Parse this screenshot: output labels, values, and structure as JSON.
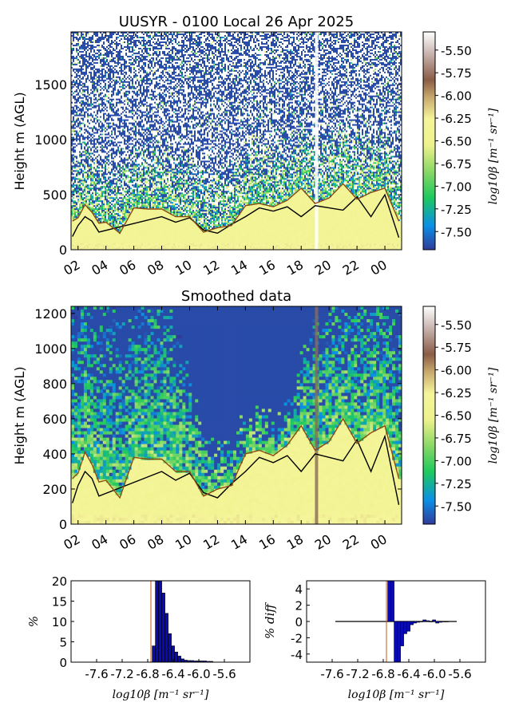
{
  "colors": {
    "colormap": [
      "#303b9a",
      "#0a8fe6",
      "#1ec95d",
      "#8ad866",
      "#eef28c",
      "#f5f59a",
      "#c8a86c",
      "#8a5c46",
      "#c8b4ae",
      "#ffffff"
    ],
    "black_line": "#000000",
    "brown_line": "#8a4a14",
    "hist_bar": "#0a0ab4",
    "marker_line": "#c45a1a"
  },
  "chart_data": [
    {
      "type": "heatmap",
      "title": "UUSYR - 0100 Local 26 Apr 2025",
      "ylabel": "Height m (AGL)",
      "xticks": [
        "02",
        "04",
        "06",
        "08",
        "10",
        "12",
        "14",
        "16",
        "18",
        "20",
        "22",
        "00"
      ],
      "xlim_hours": [
        1.5,
        25.2
      ],
      "yticks": [
        0,
        500,
        1000,
        1500
      ],
      "ylim": [
        0,
        1980
      ],
      "colorbar": {
        "label": "log10β [m⁻¹ sr⁻¹]",
        "ticks": [
          "-5.50",
          "-5.75",
          "-6.00",
          "-6.25",
          "-6.50",
          "-6.75",
          "-7.00",
          "-7.25",
          "-7.50"
        ],
        "range": [
          -7.7,
          -5.3
        ]
      },
      "series": [
        {
          "style": "black",
          "hour": [
            1.6,
            2.0,
            2.5,
            3.0,
            3.5,
            8.0,
            9.0,
            10.0,
            11.0,
            12.0,
            13.0,
            14.0,
            15.0,
            16.0,
            17.0,
            18.0,
            19.0,
            20.0,
            21.0,
            22.0,
            23.0,
            24.0,
            25.0
          ],
          "height": [
            120,
            220,
            300,
            260,
            160,
            300,
            250,
            290,
            180,
            150,
            230,
            300,
            380,
            350,
            390,
            300,
            400,
            380,
            360,
            480,
            300,
            500,
            110
          ]
        },
        {
          "style": "brown",
          "hour": [
            1.6,
            2.0,
            2.5,
            3.0,
            3.5,
            4.0,
            5.0,
            6.0,
            7.0,
            8.0,
            9.0,
            10.0,
            11.0,
            12.0,
            13.0,
            14.0,
            15.0,
            16.0,
            17.0,
            18.0,
            19.0,
            20.0,
            21.0,
            22.0,
            23.0,
            24.0,
            25.0
          ],
          "height": [
            260,
            290,
            410,
            340,
            240,
            250,
            150,
            380,
            370,
            370,
            300,
            300,
            160,
            200,
            220,
            400,
            420,
            390,
            450,
            560,
            420,
            470,
            600,
            460,
            520,
            560,
            260
          ]
        }
      ]
    },
    {
      "type": "heatmap",
      "title": "Smoothed data",
      "ylabel": "Height m (AGL)",
      "xticks": [
        "02",
        "04",
        "06",
        "08",
        "10",
        "12",
        "14",
        "16",
        "18",
        "20",
        "22",
        "00"
      ],
      "xlim_hours": [
        1.5,
        25.2
      ],
      "yticks": [
        0,
        200,
        400,
        600,
        800,
        1000,
        1200
      ],
      "ylim": [
        0,
        1240
      ],
      "colorbar": {
        "label": "log10β [m⁻¹ sr⁻¹]",
        "ticks": [
          "-5.50",
          "-5.75",
          "-6.00",
          "-6.25",
          "-6.50",
          "-6.75",
          "-7.00",
          "-7.25",
          "-7.50"
        ],
        "range": [
          -7.7,
          -5.3
        ]
      },
      "series": [
        {
          "style": "black",
          "hour": [
            1.6,
            2.0,
            2.5,
            3.0,
            3.5,
            8.0,
            9.0,
            10.0,
            11.0,
            12.0,
            13.0,
            14.0,
            15.0,
            16.0,
            17.0,
            18.0,
            19.0,
            20.0,
            21.0,
            22.0,
            23.0,
            24.0,
            25.0
          ],
          "height": [
            120,
            220,
            300,
            260,
            160,
            300,
            250,
            290,
            180,
            150,
            230,
            300,
            380,
            350,
            390,
            300,
            400,
            380,
            360,
            480,
            300,
            500,
            110
          ]
        },
        {
          "style": "brown",
          "hour": [
            1.6,
            2.0,
            2.5,
            3.0,
            3.5,
            4.0,
            5.0,
            6.0,
            7.0,
            8.0,
            9.0,
            10.0,
            11.0,
            12.0,
            13.0,
            14.0,
            15.0,
            16.0,
            17.0,
            18.0,
            19.0,
            20.0,
            21.0,
            22.0,
            23.0,
            24.0,
            25.0
          ],
          "height": [
            260,
            290,
            410,
            340,
            240,
            250,
            150,
            380,
            370,
            370,
            300,
            300,
            160,
            200,
            220,
            400,
            420,
            390,
            450,
            560,
            420,
            470,
            600,
            460,
            520,
            560,
            260
          ]
        }
      ]
    },
    {
      "type": "bar",
      "ylabel": "%",
      "xlabel": "log10β [m⁻¹ sr⁻¹]",
      "xticks": [
        "-7.6",
        "-7.2",
        "-6.8",
        "-6.4",
        "-6.0",
        "-5.6"
      ],
      "xlim": [
        -8.0,
        -5.2
      ],
      "ylim": [
        0,
        20
      ],
      "yticks": [
        0,
        5,
        10,
        15,
        20
      ],
      "bin_width": 0.05,
      "bins": [
        -6.73,
        -6.68,
        -6.63,
        -6.58,
        -6.53,
        -6.48,
        -6.43,
        -6.38,
        -6.33,
        -6.28,
        -6.23,
        -6.18,
        -6.13,
        -6.08,
        -6.03,
        -5.98,
        -5.93,
        -5.88,
        -5.83
      ],
      "values": [
        4,
        20,
        20,
        17,
        12,
        7,
        4,
        2.5,
        1.5,
        0.8,
        0.5,
        0.4,
        0.4,
        0.3,
        0.3,
        0.3,
        0.3,
        0.2,
        0.2
      ],
      "marker_x": -6.75
    },
    {
      "type": "bar",
      "ylabel": "% diff",
      "xlabel": "log10β [m⁻¹ sr⁻¹]",
      "xticks": [
        "-7.6",
        "-7.2",
        "-6.8",
        "-6.4",
        "-6.0",
        "-5.6"
      ],
      "xlim": [
        -8.0,
        -5.2
      ],
      "ylim": [
        -5,
        5
      ],
      "yticks": [
        -4,
        -2,
        0,
        2,
        4
      ],
      "bin_width": 0.05,
      "bins": [
        -6.73,
        -6.68,
        -6.63,
        -6.58,
        -6.53,
        -6.48,
        -6.43,
        -6.38,
        -6.33,
        -6.28,
        -6.23,
        -6.18,
        -6.13,
        -6.08,
        -6.03,
        -5.98,
        -5.93,
        -5.88,
        -5.83
      ],
      "values": [
        5,
        5,
        -5,
        -5,
        -3,
        -1.5,
        -1.2,
        -0.4,
        -0.2,
        -0.1,
        0,
        0.2,
        0.1,
        0,
        0.2,
        -0.2,
        -0.1,
        0,
        0
      ],
      "baseline_range": [
        -7.55,
        -5.65
      ],
      "marker_x": -6.75
    }
  ]
}
